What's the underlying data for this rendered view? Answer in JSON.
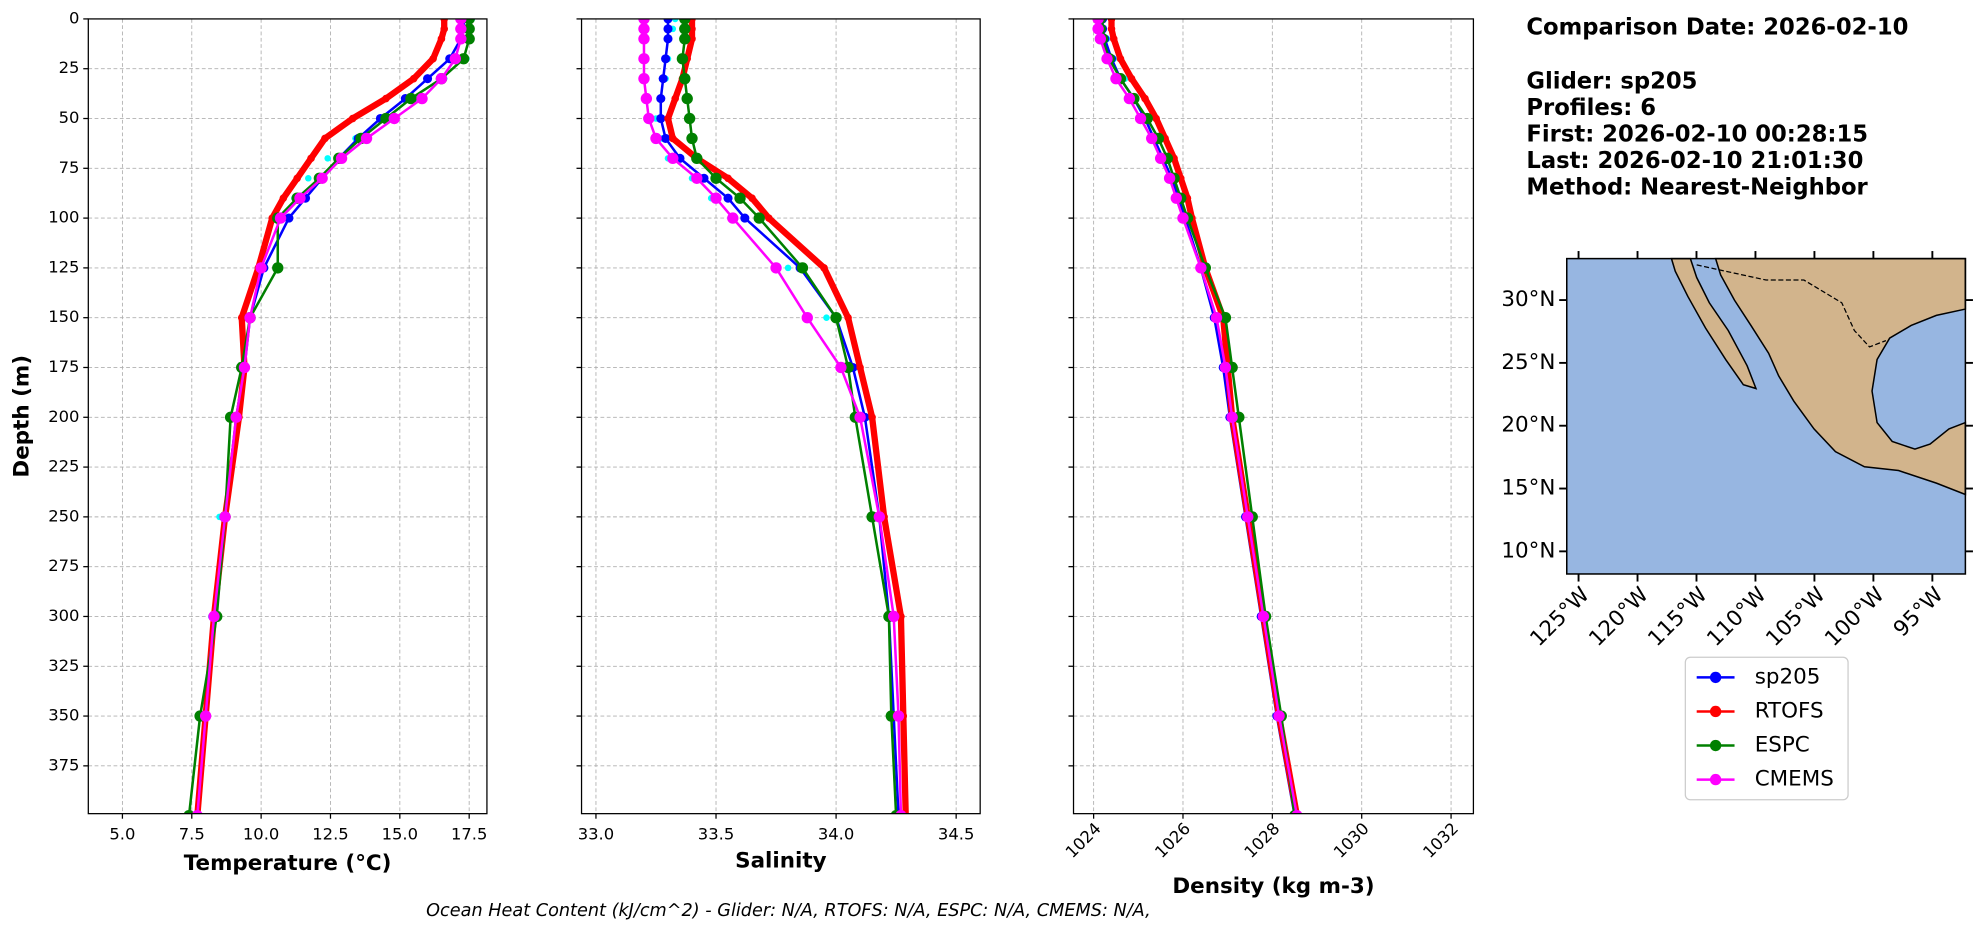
{
  "chart_data": [
    {
      "type": "line",
      "xlabel": "Temperature (°C)",
      "ylabel": "Depth (m)",
      "xlim": [
        3.77,
        18.14
      ],
      "ylim": [
        0,
        399
      ],
      "grid": true,
      "xticks": [
        {
          "value": 5,
          "label": "5.0"
        },
        7.5,
        {
          "value": 10,
          "label": "10.0"
        },
        12.5,
        {
          "value": 15,
          "label": "15.0"
        },
        17.5
      ],
      "yticks": [
        0,
        25,
        50,
        75,
        100,
        125,
        150,
        175,
        200,
        225,
        250,
        275,
        300,
        325,
        350,
        375
      ],
      "y": [
        0,
        5,
        10,
        20,
        30,
        40,
        50,
        60,
        70,
        80,
        90,
        100,
        125,
        150,
        175,
        200,
        250,
        300,
        350,
        400
      ],
      "series": [
        {
          "color": "#00ffff",
          "values": [
            17.6,
            17.5,
            17.3,
            17.4,
            16.6,
            15.6,
            14.6,
            13.4,
            12.4,
            11.7,
            11.2,
            10.6,
            10.0,
            9.5,
            9.3,
            9.0,
            8.5,
            8.2,
            7.9,
            7.6
          ]
        },
        {
          "name": "sp205",
          "color": "#0000ff",
          "values": [
            17.3,
            17.3,
            17.2,
            16.8,
            16.0,
            15.2,
            14.3,
            13.5,
            12.8,
            12.2,
            11.6,
            11.0,
            10.1,
            9.6,
            9.4,
            9.1,
            8.7,
            8.3,
            8.0,
            7.7
          ]
        },
        {
          "name": "RTOFS",
          "color": "#ff0000",
          "values": [
            16.6,
            16.6,
            16.5,
            16.2,
            15.5,
            14.5,
            13.3,
            12.3,
            11.8,
            11.3,
            10.8,
            10.4,
            9.9,
            9.3,
            9.4,
            9.2,
            8.7,
            8.3,
            8.0,
            7.7
          ]
        },
        {
          "name": "ESPC",
          "color": "#008000",
          "values": [
            17.5,
            17.5,
            17.5,
            17.3,
            16.5,
            15.4,
            14.5,
            13.6,
            12.8,
            12.1,
            11.3,
            10.6,
            10.6,
            9.6,
            9.3,
            8.9,
            8.7,
            8.4,
            7.8,
            7.4
          ]
        },
        {
          "name": "CMEMS",
          "color": "#ff00ff",
          "values": [
            17.2,
            17.2,
            17.2,
            17.0,
            16.5,
            15.8,
            14.8,
            13.8,
            12.9,
            12.2,
            11.4,
            10.7,
            10.0,
            9.6,
            9.4,
            9.1,
            8.7,
            8.3,
            8.0,
            7.7
          ]
        }
      ]
    },
    {
      "type": "line",
      "xlabel": "Salinity",
      "xlim": [
        32.94,
        34.6
      ],
      "ylim": [
        0,
        399
      ],
      "grid": true,
      "xticks": [
        {
          "value": 33,
          "label": "33.0"
        },
        33.5,
        {
          "value": 34,
          "label": "34.0"
        },
        34.5
      ],
      "yticks": [
        0,
        25,
        50,
        75,
        100,
        125,
        150,
        175,
        200,
        225,
        250,
        275,
        300,
        325,
        350,
        375
      ],
      "y": [
        0,
        5,
        10,
        20,
        30,
        40,
        50,
        60,
        70,
        80,
        90,
        100,
        125,
        150,
        175,
        200,
        250,
        300,
        350,
        400
      ],
      "series": [
        {
          "color": "#00ffff",
          "values": [
            33.33,
            33.32,
            33.3,
            33.3,
            33.29,
            33.27,
            33.25,
            33.27,
            33.3,
            33.4,
            33.48,
            33.56,
            33.8,
            33.96,
            34.08,
            34.14,
            34.2,
            34.22,
            34.24,
            34.26
          ]
        },
        {
          "name": "sp205",
          "color": "#0000ff",
          "values": [
            33.3,
            33.3,
            33.3,
            33.29,
            33.28,
            33.27,
            33.27,
            33.29,
            33.35,
            33.45,
            33.55,
            33.62,
            33.85,
            34.0,
            34.07,
            34.12,
            34.18,
            34.22,
            34.24,
            34.26
          ]
        },
        {
          "name": "RTOFS",
          "color": "#ff0000",
          "values": [
            33.4,
            33.4,
            33.4,
            33.38,
            33.36,
            33.33,
            33.3,
            33.32,
            33.42,
            33.55,
            33.65,
            33.72,
            33.95,
            34.05,
            34.1,
            34.15,
            34.2,
            34.27,
            34.28,
            34.29
          ]
        },
        {
          "name": "ESPC",
          "color": "#008000",
          "values": [
            33.37,
            33.37,
            33.37,
            33.36,
            33.37,
            33.38,
            33.39,
            33.4,
            33.42,
            33.5,
            33.6,
            33.68,
            33.86,
            34.0,
            34.05,
            34.08,
            34.15,
            34.22,
            34.23,
            34.25
          ]
        },
        {
          "name": "CMEMS",
          "color": "#ff00ff",
          "values": [
            33.2,
            33.2,
            33.2,
            33.2,
            33.2,
            33.21,
            33.22,
            33.25,
            33.32,
            33.42,
            33.5,
            33.57,
            33.75,
            33.88,
            34.02,
            34.1,
            34.18,
            34.24,
            34.26,
            34.27
          ]
        }
      ]
    },
    {
      "type": "line",
      "xlabel": "Density (kg m-3)",
      "xlim": [
        1023.55,
        1032.5
      ],
      "ylim": [
        0,
        399
      ],
      "grid": true,
      "xticks": [
        1024,
        1026,
        1028,
        1030,
        1032
      ],
      "yticks": [
        0,
        25,
        50,
        75,
        100,
        125,
        150,
        175,
        200,
        225,
        250,
        275,
        300,
        325,
        350,
        375
      ],
      "y": [
        0,
        5,
        10,
        20,
        30,
        40,
        50,
        60,
        70,
        80,
        90,
        100,
        125,
        150,
        175,
        200,
        250,
        300,
        350,
        400
      ],
      "series": [
        {
          "color": "#00ffff",
          "values": [
            1024.15,
            1024.2,
            1024.3,
            1024.45,
            1024.7,
            1024.95,
            1025.1,
            1025.3,
            1025.5,
            1025.7,
            1025.85,
            1026.0,
            1026.35,
            1026.7,
            1026.95,
            1027.1,
            1027.45,
            1027.8,
            1028.1,
            1028.5
          ]
        },
        {
          "name": "sp205",
          "color": "#0000ff",
          "values": [
            1024.2,
            1024.2,
            1024.25,
            1024.4,
            1024.6,
            1024.9,
            1025.15,
            1025.35,
            1025.55,
            1025.75,
            1025.9,
            1026.05,
            1026.4,
            1026.7,
            1026.9,
            1027.05,
            1027.4,
            1027.75,
            1028.1,
            1028.5
          ]
        },
        {
          "name": "RTOFS",
          "color": "#ff0000",
          "values": [
            1024.4,
            1024.4,
            1024.45,
            1024.6,
            1024.85,
            1025.15,
            1025.4,
            1025.6,
            1025.8,
            1025.95,
            1026.1,
            1026.2,
            1026.5,
            1026.9,
            1027.0,
            1027.1,
            1027.45,
            1027.8,
            1028.15,
            1028.55
          ]
        },
        {
          "name": "ESPC",
          "color": "#008000",
          "values": [
            1024.15,
            1024.15,
            1024.2,
            1024.35,
            1024.6,
            1024.9,
            1025.2,
            1025.45,
            1025.65,
            1025.8,
            1025.95,
            1026.1,
            1026.5,
            1026.95,
            1027.1,
            1027.25,
            1027.55,
            1027.85,
            1028.2,
            1028.5
          ]
        },
        {
          "name": "CMEMS",
          "color": "#ff00ff",
          "values": [
            1024.1,
            1024.1,
            1024.15,
            1024.3,
            1024.5,
            1024.8,
            1025.05,
            1025.3,
            1025.5,
            1025.7,
            1025.85,
            1026.0,
            1026.4,
            1026.75,
            1026.95,
            1027.1,
            1027.45,
            1027.8,
            1028.15,
            1028.55
          ]
        }
      ]
    }
  ],
  "info": [
    "Comparison Date: 2026-02-10",
    "Glider: sp205",
    "Profiles: 6",
    "First: 2026-02-10 00:28:15",
    "Last: 2026-02-10 21:01:30",
    "Method: Nearest-Neighbor"
  ],
  "map": {
    "lonlim": [
      -126,
      -92.2
    ],
    "latlim": [
      8.2,
      33.3
    ],
    "lat_ticks": [
      {
        "value": 10,
        "label": "10°N"
      },
      {
        "value": 15,
        "label": "15°N"
      },
      {
        "value": 20,
        "label": "20°N"
      },
      {
        "value": 25,
        "label": "25°N"
      },
      {
        "value": 30,
        "label": "30°N"
      }
    ],
    "lon_ticks": [
      {
        "value": -125,
        "label": "125°W"
      },
      {
        "value": -120,
        "label": "120°W"
      },
      {
        "value": -115,
        "label": "115°W"
      },
      {
        "value": -110,
        "label": "110°W"
      },
      {
        "value": -105,
        "label": "105°W"
      },
      {
        "value": -100,
        "label": "100°W"
      },
      {
        "value": -95,
        "label": "95°W"
      }
    ]
  },
  "footer": "Ocean Heat Content (kJ/cm^2) - Glider: N/A,  RTOFS: N/A,  ESPC: N/A,  CMEMS: N/A,"
}
